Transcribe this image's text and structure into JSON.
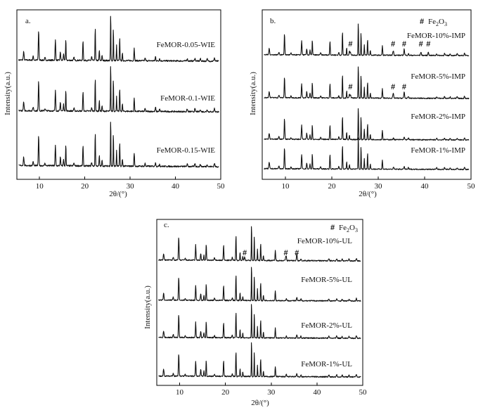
{
  "chart_data": [
    {
      "id": "a",
      "type": "line",
      "panel_label": "a.",
      "xlabel": "2θ/(°)",
      "ylabel": "Intensity(a.u.)",
      "xlim": [
        5,
        50
      ],
      "xticks": [
        10,
        20,
        30,
        40,
        50
      ],
      "legend": null,
      "series": [
        {
          "name": "FeMOR-0.05-WIE",
          "marker_positions": []
        },
        {
          "name": "FeMOR-0.1-WIE",
          "marker_positions": []
        },
        {
          "name": "FeMOR-0.15-WIE",
          "marker_positions": []
        }
      ]
    },
    {
      "id": "b",
      "type": "line",
      "panel_label": "b.",
      "xlabel": "2θ/(°)",
      "ylabel": "Intensity(a.u.)",
      "xlim": [
        5,
        50
      ],
      "xticks": [
        10,
        20,
        30,
        40,
        50
      ],
      "legend": {
        "symbol": "#",
        "label_main": "Fe",
        "label_sub1": "2",
        "label_mid": "O",
        "label_sub2": "3"
      },
      "series": [
        {
          "name": "FeMOR-10%-IMP",
          "marker_positions": [
            24.0,
            33.2,
            35.6,
            39.2,
            40.8
          ]
        },
        {
          "name": "FeMOR-5%-IMP",
          "marker_positions": [
            24.0,
            33.2,
            35.6
          ]
        },
        {
          "name": "FeMOR-2%-IMP",
          "marker_positions": []
        },
        {
          "name": "FeMOR-1%-IMP",
          "marker_positions": []
        }
      ]
    },
    {
      "id": "c",
      "type": "line",
      "panel_label": "c.",
      "xlabel": "2θ/(°)",
      "ylabel": "Intensity(a.u.)",
      "xlim": [
        5,
        50
      ],
      "xticks": [
        10,
        20,
        30,
        40,
        50
      ],
      "legend": {
        "symbol": "#",
        "label_main": "Fe",
        "label_sub1": "2",
        "label_mid": "O",
        "label_sub2": "3"
      },
      "series": [
        {
          "name": "FeMOR-10%-UL",
          "marker_positions": [
            24.2,
            33.2,
            35.6
          ]
        },
        {
          "name": "FeMOR-5%-UL",
          "marker_positions": []
        },
        {
          "name": "FeMOR-2%-UL",
          "marker_positions": []
        },
        {
          "name": "FeMOR-1%-UL",
          "marker_positions": []
        }
      ]
    }
  ],
  "mor_reflections_2theta": [
    6.5,
    8.6,
    9.8,
    13.5,
    14.6,
    15.3,
    19.6,
    22.3,
    23.2,
    25.7,
    26.3,
    27.0,
    27.7,
    30.9,
    35.6,
    42.6,
    45.5,
    48.6
  ]
}
